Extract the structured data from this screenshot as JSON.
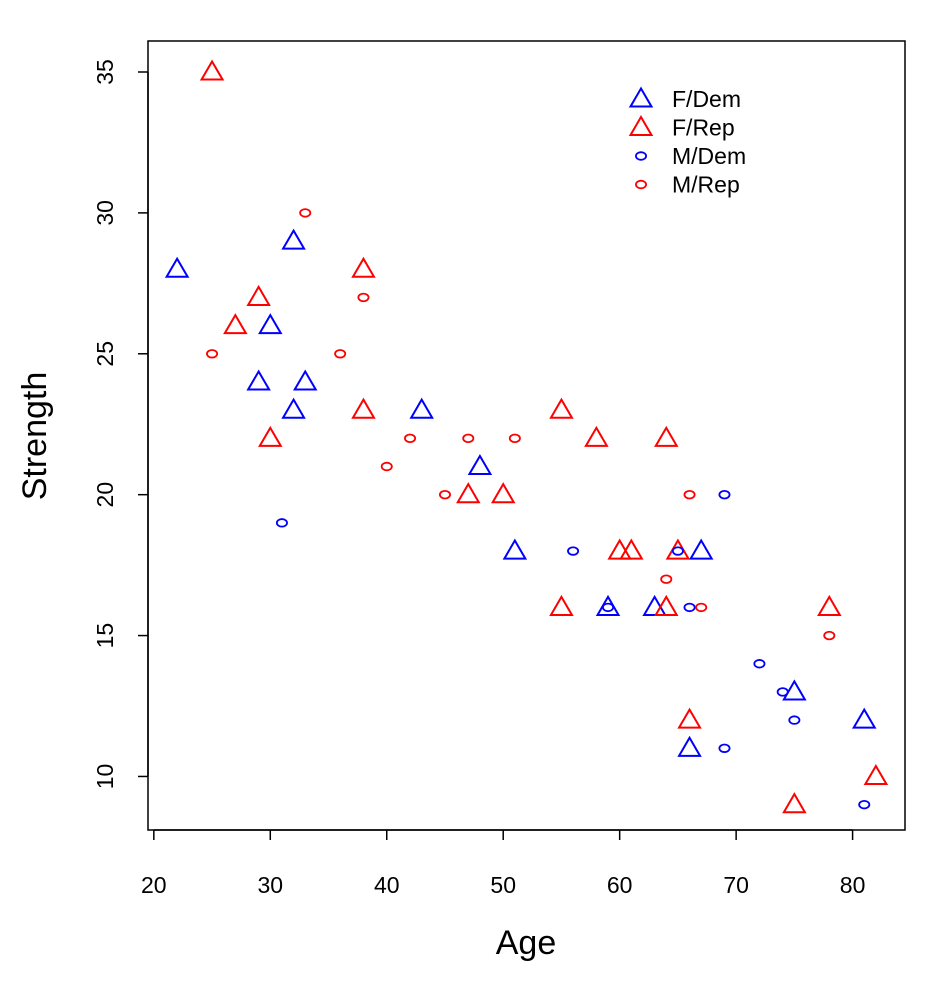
{
  "chart_data": {
    "type": "scatter",
    "xlabel": "Age",
    "ylabel": "Strength",
    "xlim": [
      19.5,
      84.5
    ],
    "ylim": [
      8.1,
      36.1
    ],
    "xticks": [
      20,
      30,
      40,
      50,
      60,
      70,
      80
    ],
    "yticks": [
      10,
      15,
      20,
      25,
      30,
      35
    ],
    "grid": false,
    "legend": {
      "position": "top-right",
      "entries": [
        {
          "label": "F/Dem",
          "color": "#0000ff",
          "marker": "triangle"
        },
        {
          "label": "F/Rep",
          "color": "#ff0000",
          "marker": "triangle"
        },
        {
          "label": "M/Dem",
          "color": "#0000ff",
          "marker": "circle"
        },
        {
          "label": "M/Rep",
          "color": "#ff0000",
          "marker": "circle"
        }
      ]
    },
    "series": [
      {
        "name": "F/Dem",
        "color": "#0000ff",
        "marker": "triangle",
        "points": [
          {
            "x": 22,
            "y": 28
          },
          {
            "x": 29,
            "y": 24
          },
          {
            "x": 30,
            "y": 26
          },
          {
            "x": 32,
            "y": 29
          },
          {
            "x": 32,
            "y": 23
          },
          {
            "x": 33,
            "y": 24
          },
          {
            "x": 43,
            "y": 23
          },
          {
            "x": 48,
            "y": 21
          },
          {
            "x": 51,
            "y": 18
          },
          {
            "x": 59,
            "y": 16
          },
          {
            "x": 63,
            "y": 16
          },
          {
            "x": 66,
            "y": 11
          },
          {
            "x": 67,
            "y": 18
          },
          {
            "x": 75,
            "y": 13
          },
          {
            "x": 81,
            "y": 12
          }
        ]
      },
      {
        "name": "F/Rep",
        "color": "#ff0000",
        "marker": "triangle",
        "points": [
          {
            "x": 25,
            "y": 35
          },
          {
            "x": 27,
            "y": 26
          },
          {
            "x": 29,
            "y": 27
          },
          {
            "x": 30,
            "y": 22
          },
          {
            "x": 38,
            "y": 28
          },
          {
            "x": 38,
            "y": 23
          },
          {
            "x": 47,
            "y": 20
          },
          {
            "x": 50,
            "y": 20
          },
          {
            "x": 55,
            "y": 23
          },
          {
            "x": 55,
            "y": 16
          },
          {
            "x": 58,
            "y": 22
          },
          {
            "x": 60,
            "y": 18
          },
          {
            "x": 61,
            "y": 18
          },
          {
            "x": 64,
            "y": 22
          },
          {
            "x": 64,
            "y": 16
          },
          {
            "x": 65,
            "y": 18
          },
          {
            "x": 66,
            "y": 12
          },
          {
            "x": 75,
            "y": 9
          },
          {
            "x": 78,
            "y": 16
          },
          {
            "x": 82,
            "y": 10
          }
        ]
      },
      {
        "name": "M/Dem",
        "color": "#0000ff",
        "marker": "circle",
        "points": [
          {
            "x": 31,
            "y": 19
          },
          {
            "x": 56,
            "y": 18
          },
          {
            "x": 59,
            "y": 16
          },
          {
            "x": 65,
            "y": 18
          },
          {
            "x": 66,
            "y": 16
          },
          {
            "x": 69,
            "y": 20
          },
          {
            "x": 69,
            "y": 11
          },
          {
            "x": 72,
            "y": 14
          },
          {
            "x": 74,
            "y": 13
          },
          {
            "x": 75,
            "y": 12
          },
          {
            "x": 81,
            "y": 9
          }
        ]
      },
      {
        "name": "M/Rep",
        "color": "#ff0000",
        "marker": "circle",
        "points": [
          {
            "x": 25,
            "y": 25
          },
          {
            "x": 33,
            "y": 30
          },
          {
            "x": 36,
            "y": 25
          },
          {
            "x": 38,
            "y": 27
          },
          {
            "x": 40,
            "y": 21
          },
          {
            "x": 42,
            "y": 22
          },
          {
            "x": 45,
            "y": 20
          },
          {
            "x": 47,
            "y": 22
          },
          {
            "x": 51,
            "y": 22
          },
          {
            "x": 64,
            "y": 17
          },
          {
            "x": 66,
            "y": 20
          },
          {
            "x": 67,
            "y": 16
          },
          {
            "x": 78,
            "y": 15
          }
        ]
      }
    ]
  }
}
